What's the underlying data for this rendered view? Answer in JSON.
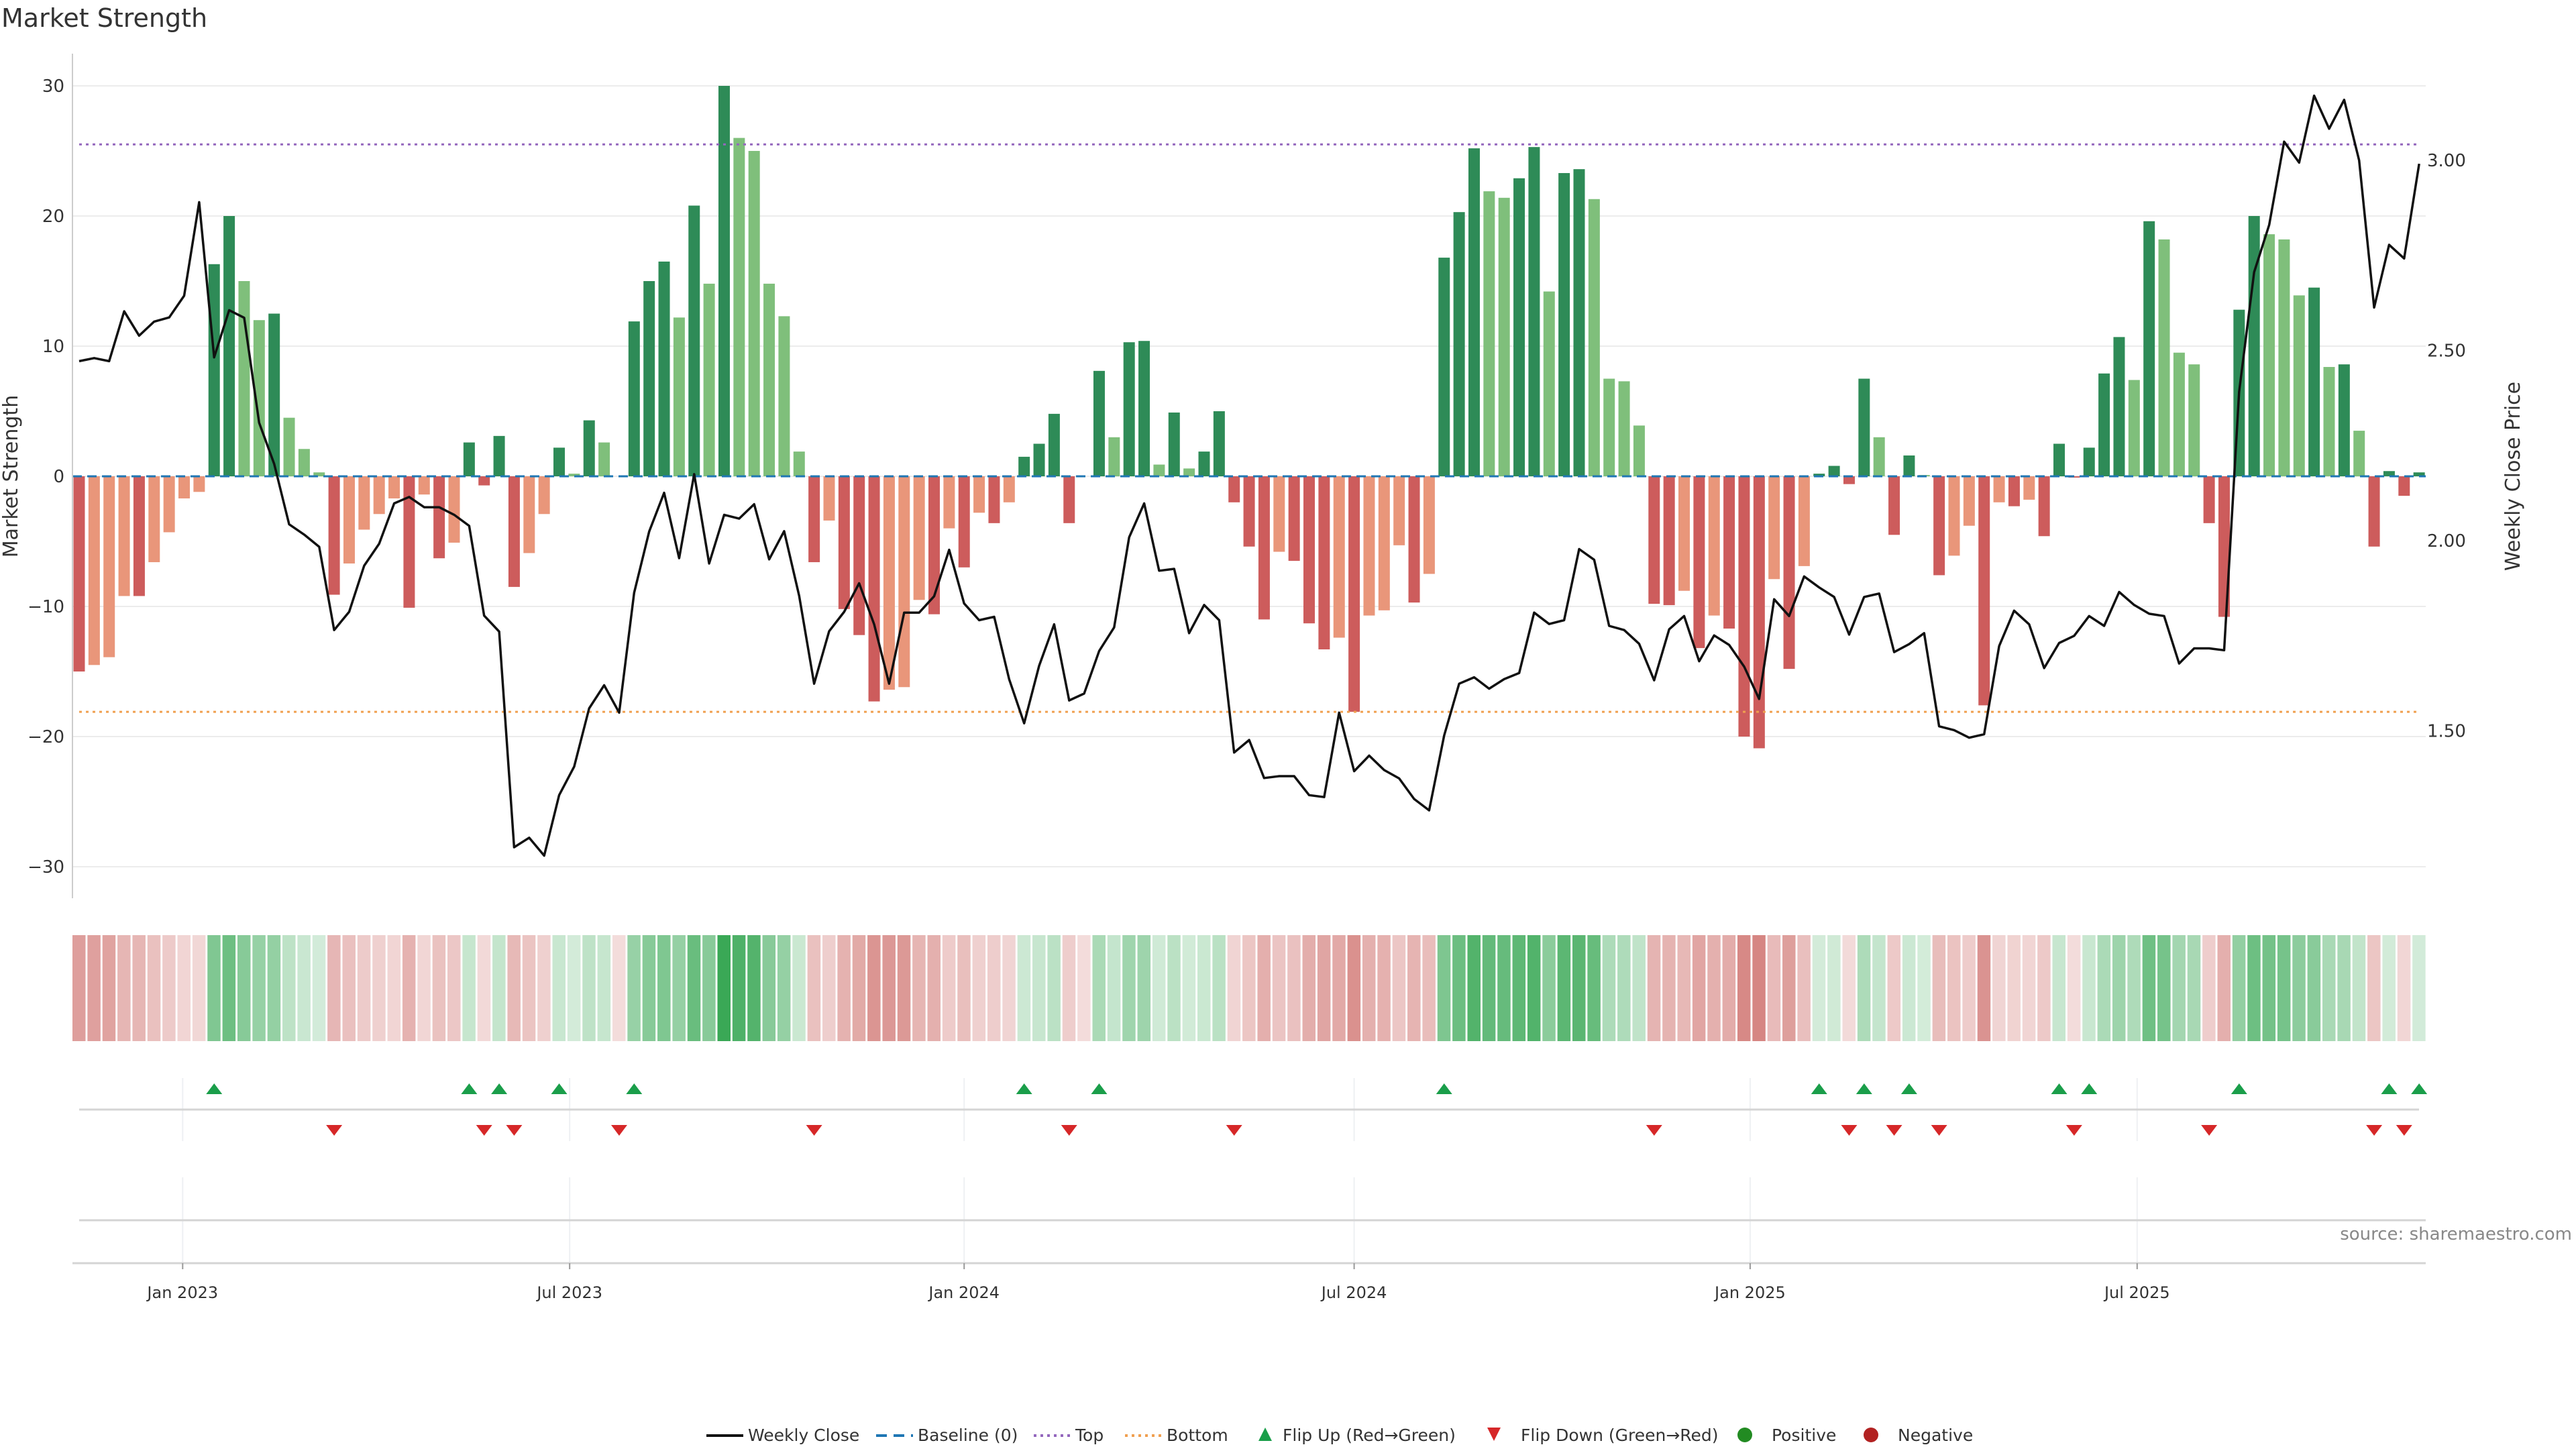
{
  "title": "Market Strength",
  "source": "source: sharemaestro.com",
  "chart_data": {
    "type": "bar+line",
    "title": "Market Strength",
    "ylabel": "Market Strength",
    "y2label": "Weekly Close Price",
    "ylim": [
      -32.4,
      32.4
    ],
    "y2lim": [
      1.06,
      3.28
    ],
    "grid": true,
    "legend_position": "bottom-center",
    "yticks": [
      {
        "v": 30,
        "label": "30"
      },
      {
        "v": 20,
        "label": "20"
      },
      {
        "v": 10,
        "label": "10"
      },
      {
        "v": 0,
        "label": "0"
      },
      {
        "v": -10,
        "label": "−10"
      },
      {
        "v": -20,
        "label": "−20"
      },
      {
        "v": -30,
        "label": "−30"
      }
    ],
    "y2ticks": [
      {
        "v": 3.0,
        "label": "3.00"
      },
      {
        "v": 2.5,
        "label": "2.50"
      },
      {
        "v": 2.0,
        "label": "2.00"
      },
      {
        "v": 1.5,
        "label": "1.50"
      }
    ],
    "xticks": [
      {
        "week": 6.9,
        "label": "Jan 2023"
      },
      {
        "week": 32.7,
        "label": "Jul 2023"
      },
      {
        "week": 59.0,
        "label": "Jan 2024"
      },
      {
        "week": 85.0,
        "label": "Jul 2024"
      },
      {
        "week": 111.4,
        "label": "Jan 2025"
      },
      {
        "week": 137.2,
        "label": "Jul 2025"
      }
    ],
    "top_level": 25.5,
    "bottom_level": -18.1,
    "baseline": 0,
    "colors": {
      "up_strong": "#2e8b57",
      "up_weak": "#7fbf7b",
      "down_strong": "#cd5c5c",
      "down_weak": "#e9967a",
      "baseline": "#1f77b4",
      "top": "#9467bd",
      "bottom": "#f0a050",
      "price": "#111111",
      "flip_up": "#1a9e4a",
      "flip_down": "#d62728",
      "positive": "#228b22",
      "negative": "#b22222",
      "heat_pos": "#3aa856",
      "heat_neg": "#c9605c"
    },
    "strength": [
      -15,
      -14.5,
      -13.9,
      -9.2,
      -9.2,
      -6.6,
      -4.3,
      -1.7,
      -1.2,
      16.3,
      20,
      15,
      12,
      12.5,
      4.5,
      2.1,
      0.3,
      -9.1,
      -6.7,
      -4.1,
      -2.9,
      -1.7,
      -10.1,
      -1.4,
      -6.3,
      -5.1,
      2.6,
      -0.7,
      3.1,
      -8.5,
      -5.9,
      -2.9,
      2.2,
      0.2,
      4.3,
      2.6,
      0,
      11.9,
      15,
      16.5,
      12.2,
      20.8,
      14.8,
      30,
      26,
      25,
      14.8,
      12.3,
      1.9,
      -6.6,
      -3.4,
      -10.2,
      -12.2,
      -17.3,
      -16.4,
      -16.2,
      -9.5,
      -10.6,
      -4.0,
      -7.0,
      -2.8,
      -3.6,
      -2.0,
      1.5,
      2.5,
      4.8,
      -3.6,
      0,
      8.1,
      3.0,
      10.3,
      10.4,
      0.9,
      4.9,
      0.6,
      1.9,
      5.0,
      -2.0,
      -5.4,
      -11.0,
      -5.8,
      -6.5,
      -11.3,
      -13.3,
      -12.4,
      -18.1,
      -10.7,
      -10.3,
      -5.3,
      -9.7,
      -7.5,
      16.8,
      20.3,
      25.2,
      21.9,
      21.4,
      22.9,
      25.3,
      14.2,
      23.3,
      23.6,
      21.3,
      7.5,
      7.3,
      3.9,
      -9.8,
      -9.9,
      -8.8,
      -13.2,
      -10.7,
      -11.7,
      -20.0,
      -20.9,
      -7.9,
      -14.8,
      -6.9,
      0.2,
      0.8,
      -0.6,
      7.5,
      3.0,
      -4.5,
      1.6,
      0.1,
      -7.6,
      -6.1,
      -3.8,
      -17.6,
      -2.0,
      -2.3,
      -1.8,
      -4.6,
      2.5,
      -0.1,
      2.2,
      7.9,
      10.7,
      7.4,
      19.6,
      18.2,
      9.5,
      8.6,
      -3.6,
      -10.8,
      12.8,
      20.0,
      18.6,
      18.2,
      13.9,
      14.5,
      8.4,
      8.6,
      3.5,
      -5.4,
      0.4,
      -1.5,
      0.3
    ],
    "weekly_close": [
      2.472,
      2.48,
      2.472,
      2.603,
      2.539,
      2.576,
      2.587,
      2.644,
      2.89,
      2.482,
      2.606,
      2.586,
      2.31,
      2.202,
      2.043,
      2.016,
      1.984,
      1.765,
      1.813,
      1.934,
      1.992,
      2.098,
      2.115,
      2.088,
      2.088,
      2.068,
      2.039,
      1.803,
      1.761,
      1.194,
      1.219,
      1.172,
      1.331,
      1.406,
      1.559,
      1.62,
      1.548,
      1.863,
      2.024,
      2.126,
      1.954,
      2.175,
      1.94,
      2.068,
      2.058,
      2.096,
      1.951,
      2.025,
      1.855,
      1.624,
      1.762,
      1.813,
      1.888,
      1.78,
      1.624,
      1.811,
      1.811,
      1.854,
      1.976,
      1.835,
      1.791,
      1.8,
      1.636,
      1.52,
      1.671,
      1.78,
      1.58,
      1.598,
      1.71,
      1.772,
      2.009,
      2.098,
      1.921,
      1.926,
      1.757,
      1.831,
      1.791,
      1.443,
      1.476,
      1.376,
      1.381,
      1.381,
      1.331,
      1.326,
      1.548,
      1.394,
      1.435,
      1.397,
      1.375,
      1.321,
      1.291,
      1.488,
      1.624,
      1.641,
      1.611,
      1.636,
      1.652,
      1.811,
      1.781,
      1.791,
      1.978,
      1.95,
      1.776,
      1.765,
      1.729,
      1.633,
      1.767,
      1.802,
      1.683,
      1.751,
      1.726,
      1.669,
      1.584,
      1.846,
      1.802,
      1.906,
      1.877,
      1.852,
      1.753,
      1.852,
      1.861,
      1.707,
      1.728,
      1.757,
      1.512,
      1.502,
      1.482,
      1.491,
      1.723,
      1.816,
      1.78,
      1.665,
      1.731,
      1.75,
      1.802,
      1.776,
      1.865,
      1.831,
      1.808,
      1.802,
      1.677,
      1.717,
      1.717,
      1.712,
      2.391,
      2.706,
      2.83,
      3.049,
      2.994,
      3.17,
      3.083,
      3.159,
      3.0,
      2.613,
      2.778,
      2.742,
      2.991
    ],
    "legend": [
      {
        "key": "price",
        "label": "Weekly Close"
      },
      {
        "key": "baseline",
        "label": "Baseline (0)"
      },
      {
        "key": "top",
        "label": "Top"
      },
      {
        "key": "bottom",
        "label": "Bottom"
      },
      {
        "key": "flip_up",
        "label": "Flip Up (Red→Green)"
      },
      {
        "key": "flip_down",
        "label": "Flip Down (Green→Red)"
      },
      {
        "key": "positive",
        "label": "Positive"
      },
      {
        "key": "negative",
        "label": "Negative"
      }
    ]
  }
}
